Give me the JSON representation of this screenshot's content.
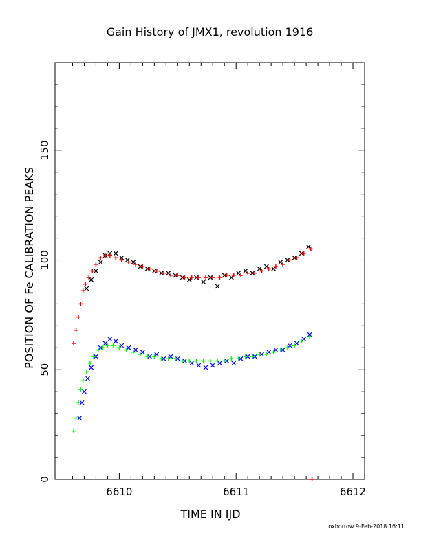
{
  "chart_data": {
    "type": "scatter",
    "title": "Gain History of JMX1, revolution 1916",
    "xlabel": "TIME IN IJD",
    "ylabel": "POSITION OF Fe CALIBRATION PEAKS",
    "xlim": [
      6609.45,
      6612.1
    ],
    "ylim": [
      0,
      190
    ],
    "x_ticks": [
      6610,
      6611,
      6612
    ],
    "x_tick_labels": [
      "6610",
      "6611",
      "6612"
    ],
    "y_ticks": [
      0,
      50,
      100,
      150
    ],
    "y_tick_labels": [
      "0",
      "50",
      "100",
      "150"
    ],
    "grid": false,
    "legend": "none",
    "series": [
      {
        "marker": "x",
        "color": "#000000",
        "points": [
          [
            6609.72,
            87
          ],
          [
            6609.76,
            91
          ],
          [
            6609.8,
            95
          ],
          [
            6609.84,
            99
          ],
          [
            6609.88,
            102
          ],
          [
            6609.92,
            103
          ],
          [
            6609.97,
            103
          ],
          [
            6610.02,
            101
          ],
          [
            6610.07,
            100
          ],
          [
            6610.12,
            99
          ],
          [
            6610.18,
            97
          ],
          [
            6610.24,
            96
          ],
          [
            6610.3,
            95
          ],
          [
            6610.36,
            94
          ],
          [
            6610.42,
            94
          ],
          [
            6610.48,
            93
          ],
          [
            6610.54,
            92
          ],
          [
            6610.6,
            91
          ],
          [
            6610.66,
            92
          ],
          [
            6610.72,
            90
          ],
          [
            6610.78,
            92
          ],
          [
            6610.84,
            88
          ],
          [
            6610.9,
            93
          ],
          [
            6610.96,
            92
          ],
          [
            6611.02,
            94
          ],
          [
            6611.08,
            95
          ],
          [
            6611.14,
            94
          ],
          [
            6611.2,
            96
          ],
          [
            6611.26,
            97
          ],
          [
            6611.32,
            96
          ],
          [
            6611.38,
            99
          ],
          [
            6611.44,
            100
          ],
          [
            6611.5,
            101
          ],
          [
            6611.56,
            103
          ],
          [
            6611.62,
            106
          ]
        ]
      },
      {
        "marker": "+",
        "color": "#ff0000",
        "points": [
          [
            6609.61,
            62
          ],
          [
            6609.63,
            68
          ],
          [
            6609.65,
            74
          ],
          [
            6609.67,
            80
          ],
          [
            6609.69,
            86
          ],
          [
            6609.71,
            89
          ],
          [
            6609.74,
            92
          ],
          [
            6609.77,
            95
          ],
          [
            6609.8,
            98
          ],
          [
            6609.84,
            101
          ],
          [
            6609.88,
            102
          ],
          [
            6609.92,
            102
          ],
          [
            6609.97,
            101
          ],
          [
            6610.02,
            100
          ],
          [
            6610.08,
            99
          ],
          [
            6610.14,
            98
          ],
          [
            6610.2,
            97
          ],
          [
            6610.26,
            96
          ],
          [
            6610.32,
            95
          ],
          [
            6610.38,
            94
          ],
          [
            6610.44,
            93
          ],
          [
            6610.5,
            93
          ],
          [
            6610.56,
            92
          ],
          [
            6610.62,
            92
          ],
          [
            6610.68,
            92
          ],
          [
            6610.74,
            92
          ],
          [
            6610.8,
            92
          ],
          [
            6610.86,
            92
          ],
          [
            6610.92,
            93
          ],
          [
            6610.98,
            93
          ],
          [
            6611.04,
            93
          ],
          [
            6611.1,
            94
          ],
          [
            6611.16,
            94
          ],
          [
            6611.22,
            95
          ],
          [
            6611.28,
            96
          ],
          [
            6611.34,
            97
          ],
          [
            6611.4,
            98
          ],
          [
            6611.46,
            100
          ],
          [
            6611.52,
            101
          ],
          [
            6611.58,
            103
          ],
          [
            6611.64,
            105
          ]
        ]
      },
      {
        "marker": "x",
        "color": "#0000ff",
        "points": [
          [
            6609.66,
            28
          ],
          [
            6609.68,
            35
          ],
          [
            6609.7,
            40
          ],
          [
            6609.73,
            46
          ],
          [
            6609.76,
            51
          ],
          [
            6609.8,
            56
          ],
          [
            6609.84,
            60
          ],
          [
            6609.88,
            62
          ],
          [
            6609.92,
            64
          ],
          [
            6609.97,
            63
          ],
          [
            6610.02,
            61
          ],
          [
            6610.08,
            60
          ],
          [
            6610.14,
            59
          ],
          [
            6610.2,
            58
          ],
          [
            6610.26,
            56
          ],
          [
            6610.32,
            57
          ],
          [
            6610.38,
            55
          ],
          [
            6610.44,
            56
          ],
          [
            6610.5,
            55
          ],
          [
            6610.56,
            54
          ],
          [
            6610.62,
            53
          ],
          [
            6610.68,
            52
          ],
          [
            6610.74,
            51
          ],
          [
            6610.8,
            52
          ],
          [
            6610.86,
            53
          ],
          [
            6610.92,
            54
          ],
          [
            6610.98,
            53
          ],
          [
            6611.04,
            55
          ],
          [
            6611.1,
            56
          ],
          [
            6611.16,
            56
          ],
          [
            6611.22,
            57
          ],
          [
            6611.28,
            58
          ],
          [
            6611.34,
            59
          ],
          [
            6611.4,
            59
          ],
          [
            6611.46,
            61
          ],
          [
            6611.52,
            62
          ],
          [
            6611.58,
            64
          ],
          [
            6611.63,
            66
          ]
        ]
      },
      {
        "marker": "+",
        "color": "#00ff00",
        "points": [
          [
            6609.61,
            22
          ],
          [
            6609.63,
            28
          ],
          [
            6609.65,
            35
          ],
          [
            6609.67,
            41
          ],
          [
            6609.69,
            45
          ],
          [
            6609.72,
            49
          ],
          [
            6609.75,
            53
          ],
          [
            6609.78,
            56
          ],
          [
            6609.82,
            59
          ],
          [
            6609.86,
            60
          ],
          [
            6609.9,
            61
          ],
          [
            6609.95,
            61
          ],
          [
            6610.0,
            60
          ],
          [
            6610.06,
            59
          ],
          [
            6610.12,
            58
          ],
          [
            6610.18,
            57
          ],
          [
            6610.24,
            56
          ],
          [
            6610.3,
            56
          ],
          [
            6610.36,
            55
          ],
          [
            6610.42,
            55
          ],
          [
            6610.48,
            55
          ],
          [
            6610.54,
            54
          ],
          [
            6610.6,
            54
          ],
          [
            6610.66,
            54
          ],
          [
            6610.72,
            54
          ],
          [
            6610.78,
            54
          ],
          [
            6610.84,
            54
          ],
          [
            6610.9,
            54
          ],
          [
            6610.96,
            55
          ],
          [
            6611.02,
            55
          ],
          [
            6611.08,
            56
          ],
          [
            6611.14,
            56
          ],
          [
            6611.2,
            57
          ],
          [
            6611.26,
            57
          ],
          [
            6611.32,
            58
          ],
          [
            6611.38,
            59
          ],
          [
            6611.44,
            60
          ],
          [
            6611.5,
            61
          ],
          [
            6611.56,
            63
          ],
          [
            6611.63,
            65
          ]
        ]
      }
    ],
    "isolated_points": [
      {
        "x": 6611.65,
        "y": 0,
        "marker": "+",
        "color": "#ff0000"
      }
    ]
  },
  "footer": "oxborrow 9-Feb-2018 16:11"
}
